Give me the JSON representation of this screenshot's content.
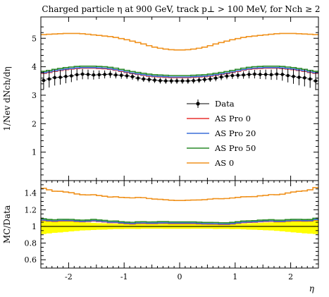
{
  "chart_data": [
    {
      "type": "line",
      "title": "Charged particle η at 900 GeV, track p⊥ > 100 MeV, for Nch ≥ 2",
      "ylabel": "1/Nev dNch/dη",
      "ylim": [
        0,
        5.75
      ],
      "xlim": [
        -2.5,
        2.5
      ],
      "yticks": [
        "1",
        "2",
        "3",
        "4",
        "5"
      ],
      "legend_position": "lower-right",
      "x": [
        -2.45,
        -2.35,
        -2.25,
        -2.15,
        -2.05,
        -1.95,
        -1.85,
        -1.75,
        -1.65,
        -1.55,
        -1.45,
        -1.35,
        -1.25,
        -1.15,
        -1.05,
        -0.95,
        -0.85,
        -0.75,
        -0.65,
        -0.55,
        -0.45,
        -0.35,
        -0.25,
        -0.15,
        -0.05,
        0.05,
        0.15,
        0.25,
        0.35,
        0.45,
        0.55,
        0.65,
        0.75,
        0.85,
        0.95,
        1.05,
        1.15,
        1.25,
        1.35,
        1.45,
        1.55,
        1.65,
        1.75,
        1.85,
        1.95,
        2.05,
        2.15,
        2.25,
        2.35,
        2.45
      ],
      "series": [
        {
          "name": "Data",
          "color": "#000000",
          "style": "points",
          "values": [
            3.52,
            3.57,
            3.62,
            3.63,
            3.66,
            3.68,
            3.72,
            3.74,
            3.73,
            3.71,
            3.72,
            3.73,
            3.74,
            3.71,
            3.7,
            3.68,
            3.65,
            3.6,
            3.57,
            3.55,
            3.53,
            3.51,
            3.5,
            3.5,
            3.5,
            3.5,
            3.5,
            3.51,
            3.53,
            3.55,
            3.57,
            3.6,
            3.64,
            3.67,
            3.69,
            3.7,
            3.71,
            3.73,
            3.74,
            3.73,
            3.73,
            3.72,
            3.74,
            3.73,
            3.69,
            3.66,
            3.63,
            3.61,
            3.57,
            3.5
          ],
          "errors": [
            0.32,
            0.3,
            0.28,
            0.26,
            0.24,
            0.22,
            0.2,
            0.18,
            0.17,
            0.16,
            0.15,
            0.14,
            0.13,
            0.12,
            0.12,
            0.11,
            0.11,
            0.11,
            0.1,
            0.1,
            0.1,
            0.1,
            0.1,
            0.1,
            0.1,
            0.1,
            0.1,
            0.1,
            0.1,
            0.1,
            0.1,
            0.11,
            0.11,
            0.11,
            0.12,
            0.12,
            0.13,
            0.14,
            0.15,
            0.16,
            0.17,
            0.18,
            0.2,
            0.22,
            0.24,
            0.26,
            0.28,
            0.3,
            0.31,
            0.32
          ]
        },
        {
          "name": "AS Pro 0",
          "color": "#e8312f",
          "values": [
            3.77,
            3.8,
            3.84,
            3.87,
            3.9,
            3.92,
            3.94,
            3.95,
            3.95,
            3.95,
            3.94,
            3.93,
            3.91,
            3.88,
            3.84,
            3.8,
            3.76,
            3.73,
            3.7,
            3.67,
            3.65,
            3.64,
            3.63,
            3.62,
            3.62,
            3.62,
            3.62,
            3.63,
            3.64,
            3.65,
            3.67,
            3.7,
            3.73,
            3.76,
            3.8,
            3.84,
            3.88,
            3.91,
            3.93,
            3.94,
            3.95,
            3.95,
            3.95,
            3.94,
            3.92,
            3.9,
            3.87,
            3.84,
            3.8,
            3.77
          ]
        },
        {
          "name": "AS Pro 20",
          "color": "#3a6fd8",
          "values": [
            3.79,
            3.82,
            3.86,
            3.89,
            3.92,
            3.94,
            3.96,
            3.97,
            3.97,
            3.97,
            3.96,
            3.95,
            3.93,
            3.9,
            3.86,
            3.82,
            3.78,
            3.75,
            3.72,
            3.69,
            3.67,
            3.66,
            3.65,
            3.64,
            3.64,
            3.64,
            3.64,
            3.65,
            3.66,
            3.67,
            3.69,
            3.72,
            3.75,
            3.78,
            3.82,
            3.86,
            3.9,
            3.93,
            3.95,
            3.96,
            3.97,
            3.97,
            3.97,
            3.96,
            3.94,
            3.92,
            3.89,
            3.86,
            3.82,
            3.79
          ]
        },
        {
          "name": "AS Pro 50",
          "color": "#2a8a2a",
          "values": [
            3.84,
            3.87,
            3.91,
            3.94,
            3.97,
            3.99,
            4.01,
            4.02,
            4.02,
            4.02,
            4.01,
            4.0,
            3.98,
            3.95,
            3.91,
            3.87,
            3.83,
            3.8,
            3.77,
            3.74,
            3.72,
            3.71,
            3.7,
            3.69,
            3.69,
            3.69,
            3.69,
            3.7,
            3.71,
            3.72,
            3.74,
            3.77,
            3.8,
            3.83,
            3.87,
            3.91,
            3.95,
            3.98,
            4.0,
            4.01,
            4.02,
            4.02,
            4.02,
            4.01,
            3.99,
            3.97,
            3.94,
            3.91,
            3.87,
            3.84
          ]
        },
        {
          "name": "AS 0",
          "color": "#f0921e",
          "values": [
            5.13,
            5.14,
            5.15,
            5.16,
            5.17,
            5.17,
            5.17,
            5.16,
            5.14,
            5.12,
            5.1,
            5.08,
            5.06,
            5.03,
            4.99,
            4.95,
            4.9,
            4.85,
            4.8,
            4.74,
            4.69,
            4.65,
            4.62,
            4.6,
            4.59,
            4.59,
            4.6,
            4.62,
            4.65,
            4.69,
            4.74,
            4.8,
            4.85,
            4.9,
            4.95,
            4.99,
            5.03,
            5.06,
            5.08,
            5.1,
            5.12,
            5.14,
            5.16,
            5.17,
            5.17,
            5.17,
            5.16,
            5.15,
            5.14,
            5.13
          ]
        }
      ]
    },
    {
      "type": "line",
      "title": "",
      "ylabel": "MC/Data",
      "xlabel": "η",
      "ylim": [
        0.5,
        1.55
      ],
      "xlim": [
        -2.5,
        2.5
      ],
      "yticks": [
        "0.6",
        "0.8",
        "1",
        "1.2",
        "1.4"
      ],
      "xticks": [
        "-2",
        "-1",
        "0",
        "1",
        "2"
      ],
      "band_color": "#ffff00",
      "band_relative_error": [
        0.091,
        0.084,
        0.077,
        0.072,
        0.066,
        0.06,
        0.054,
        0.048,
        0.046,
        0.043,
        0.04,
        0.038,
        0.035,
        0.032,
        0.032,
        0.03,
        0.03,
        0.031,
        0.028,
        0.028,
        0.028,
        0.028,
        0.029,
        0.029,
        0.029,
        0.029,
        0.029,
        0.028,
        0.028,
        0.028,
        0.028,
        0.031,
        0.03,
        0.03,
        0.033,
        0.032,
        0.035,
        0.038,
        0.04,
        0.043,
        0.046,
        0.048,
        0.053,
        0.059,
        0.065,
        0.071,
        0.077,
        0.083,
        0.087,
        0.091
      ]
    }
  ]
}
